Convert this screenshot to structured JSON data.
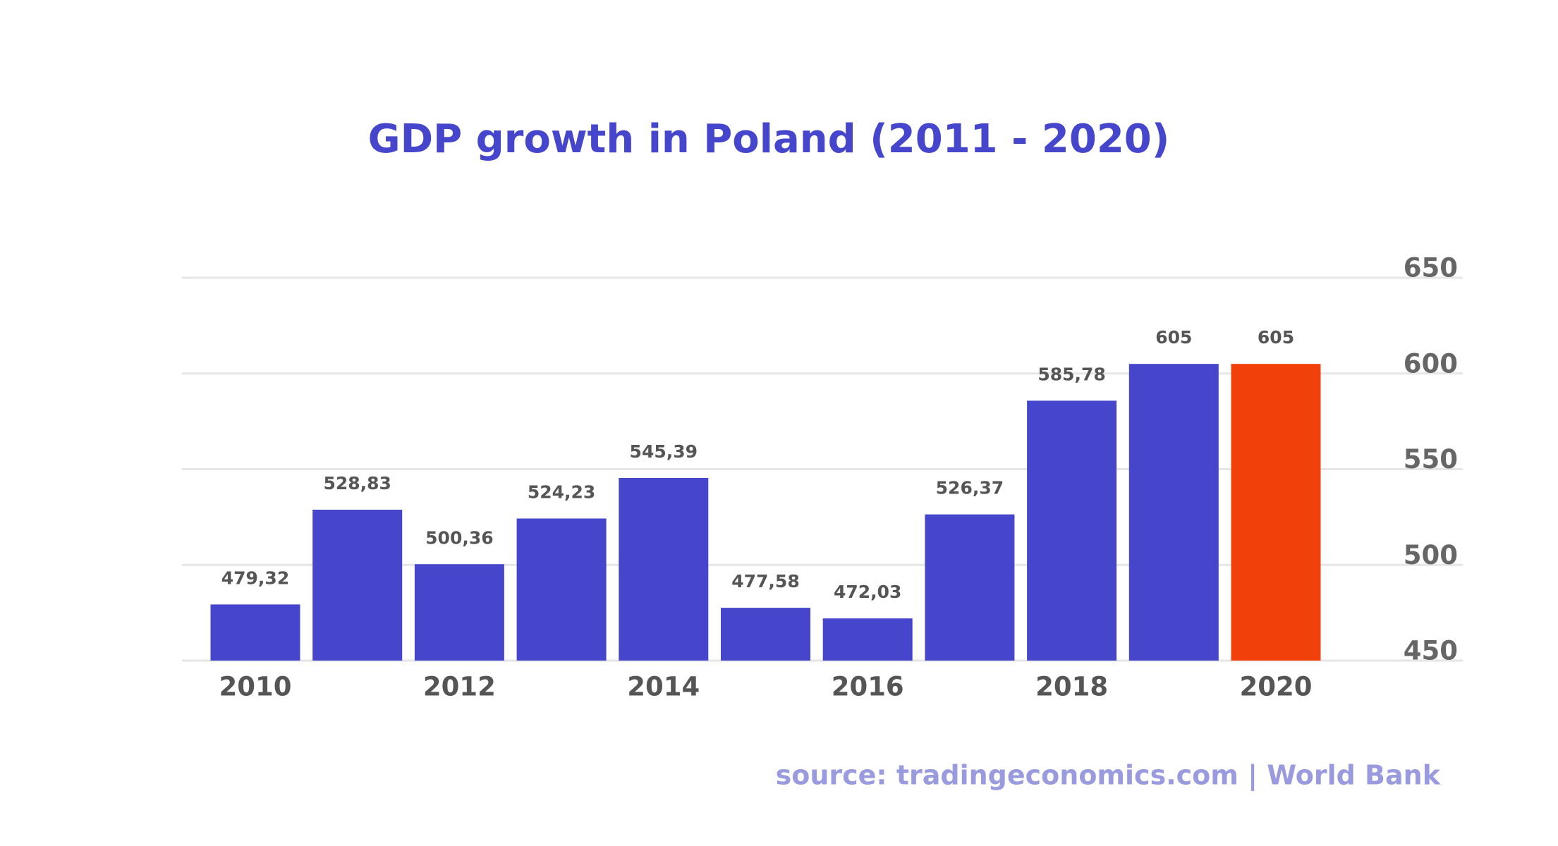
{
  "chart_data": {
    "type": "bar",
    "title": "GDP growth in Poland (2011 - 2020)",
    "source": "source: tradingeconomics.com | World Bank",
    "categories": [
      "2010",
      null,
      "2012",
      null,
      "2014",
      null,
      "2016",
      null,
      "2018",
      null,
      "2020"
    ],
    "values": [
      479.32,
      528.83,
      500.36,
      524.23,
      545.39,
      477.58,
      472.03,
      526.37,
      585.78,
      605,
      605
    ],
    "value_labels": [
      "479,32",
      "528,83",
      "500,36",
      "524,23",
      "545,39",
      "477,58",
      "472,03",
      "526,37",
      "585,78",
      "605",
      "605"
    ],
    "colors": [
      "#4646cc",
      "#4646cc",
      "#4646cc",
      "#4646cc",
      "#4646cc",
      "#4646cc",
      "#4646cc",
      "#4646cc",
      "#4646cc",
      "#4646cc",
      "#f2400a"
    ],
    "ylim": [
      450,
      650
    ],
    "yticks": [
      450,
      500,
      550,
      600,
      650
    ],
    "grid": true
  }
}
